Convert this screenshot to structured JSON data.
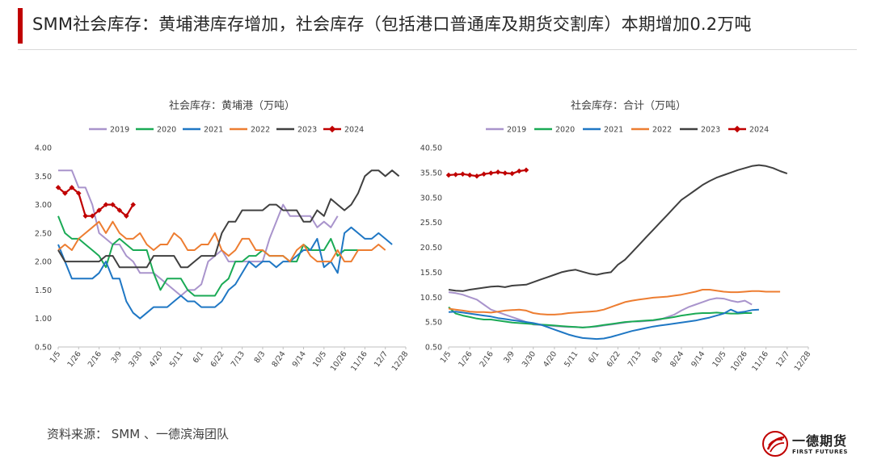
{
  "header": {
    "title": "SMM社会库存：黄埔港库存增加，社会库存（包括港口普通库及期货交割库）本期增加0.2万吨"
  },
  "footer": {
    "source": "资料来源：  SMM 、一德滨海团队"
  },
  "logo": {
    "name_cn": "一德期货",
    "name_en": "FIRST FUTURES"
  },
  "colors": {
    "2019": "#a994cc",
    "2020": "#1aaa55",
    "2021": "#1f77c4",
    "2022": "#ed7d31",
    "2023": "#404040",
    "2024": "#c00000",
    "accent": "#c00000"
  },
  "chart_data": [
    {
      "type": "line",
      "title": "社会库存：黄埔港（万吨）",
      "x_tick_labels": [
        "1/5",
        "1/26",
        "2/16",
        "3/9",
        "3/30",
        "4/20",
        "5/11",
        "6/1",
        "6/22",
        "7/13",
        "8/3",
        "8/24",
        "9/14",
        "10/5",
        "10/26",
        "11/16",
        "12/7",
        "12/28"
      ],
      "ylim": [
        0.5,
        4.0
      ],
      "y_ticks": [
        0.5,
        1.0,
        1.5,
        2.0,
        2.5,
        3.0,
        3.5,
        4.0
      ],
      "y_tick_labels": [
        "0.50",
        "1.00",
        "1.50",
        "2.00",
        "2.50",
        "3.00",
        "3.50",
        "4.00"
      ],
      "grid": false,
      "legend_position": "top",
      "series": [
        {
          "name": "2019",
          "values": [
            3.6,
            3.6,
            3.6,
            3.3,
            3.3,
            3.0,
            2.5,
            2.4,
            2.3,
            2.3,
            2.1,
            2.0,
            1.8,
            1.8,
            1.8,
            1.7,
            1.6,
            1.5,
            1.4,
            1.5,
            1.5,
            1.6,
            2.0,
            2.1,
            2.2,
            2.0,
            2.0,
            2.0,
            2.0,
            2.0,
            2.0,
            2.4,
            2.7,
            3.0,
            2.8,
            2.8,
            2.8,
            2.8,
            2.6,
            2.7,
            2.6,
            2.8
          ]
        },
        {
          "name": "2020",
          "values": [
            2.8,
            2.5,
            2.4,
            2.4,
            2.3,
            2.2,
            2.1,
            1.9,
            2.3,
            2.4,
            2.3,
            2.2,
            2.2,
            2.2,
            1.8,
            1.5,
            1.7,
            1.7,
            1.7,
            1.5,
            1.4,
            1.4,
            1.4,
            1.4,
            1.6,
            1.7,
            2.0,
            2.0,
            2.1,
            2.1,
            2.2,
            2.1,
            2.1,
            2.1,
            2.0,
            2.0,
            2.3,
            2.2,
            2.2,
            2.2,
            2.4,
            2.1,
            2.2,
            2.2,
            2.2
          ]
        },
        {
          "name": "2021",
          "values": [
            2.3,
            2.0,
            1.7,
            1.7,
            1.7,
            1.7,
            1.8,
            2.0,
            1.7,
            1.7,
            1.3,
            1.1,
            1.0,
            1.1,
            1.2,
            1.2,
            1.2,
            1.3,
            1.4,
            1.3,
            1.3,
            1.2,
            1.2,
            1.2,
            1.3,
            1.5,
            1.6,
            1.8,
            2.0,
            1.9,
            2.0,
            2.0,
            1.9,
            2.0,
            2.0,
            2.1,
            2.2,
            2.2,
            2.4,
            1.9,
            2.0,
            1.8,
            2.5,
            2.6,
            2.5,
            2.4,
            2.4,
            2.5,
            2.4,
            2.3
          ]
        },
        {
          "name": "2022",
          "values": [
            2.2,
            2.3,
            2.2,
            2.4,
            2.5,
            2.6,
            2.7,
            2.5,
            2.7,
            2.5,
            2.4,
            2.4,
            2.5,
            2.3,
            2.2,
            2.3,
            2.3,
            2.5,
            2.4,
            2.2,
            2.2,
            2.3,
            2.3,
            2.5,
            2.2,
            2.1,
            2.2,
            2.4,
            2.4,
            2.2,
            2.2,
            2.1,
            2.1,
            2.1,
            2.0,
            2.2,
            2.3,
            2.1,
            2.0,
            2.0,
            2.0,
            2.2,
            2.0,
            2.0,
            2.2,
            2.2,
            2.2,
            2.3,
            2.2
          ]
        },
        {
          "name": "2023",
          "values": [
            2.2,
            2.0,
            2.0,
            2.0,
            2.0,
            2.0,
            2.0,
            2.1,
            2.1,
            1.9,
            1.9,
            1.9,
            1.9,
            1.9,
            2.1,
            2.1,
            2.1,
            2.1,
            1.9,
            1.9,
            2.0,
            2.1,
            2.1,
            2.1,
            2.5,
            2.7,
            2.7,
            2.9,
            2.9,
            2.9,
            2.9,
            3.0,
            3.0,
            2.9,
            2.9,
            2.9,
            2.7,
            2.7,
            2.9,
            2.8,
            3.1,
            3.0,
            2.9,
            3.0,
            3.2,
            3.5,
            3.6,
            3.6,
            3.5,
            3.6,
            3.5
          ]
        },
        {
          "name": "2024",
          "values": [
            3.3,
            3.2,
            3.3,
            3.2,
            2.8,
            2.8,
            2.9,
            3.0,
            3.0,
            2.9,
            2.8,
            3.0
          ]
        }
      ]
    },
    {
      "type": "line",
      "title": "社会库存：合计（万吨）",
      "x_tick_labels": [
        "1/5",
        "1/26",
        "2/16",
        "3/9",
        "3/30",
        "4/20",
        "5/11",
        "6/1",
        "6/22",
        "7/13",
        "8/3",
        "8/24",
        "9/14",
        "10/5",
        "10/26",
        "11/16",
        "12/7",
        "12/28"
      ],
      "ylim": [
        0.5,
        40.5
      ],
      "y_ticks": [
        0.5,
        5.5,
        10.5,
        15.5,
        20.5,
        25.5,
        30.5,
        35.5,
        40.5
      ],
      "y_tick_labels": [
        "0.50",
        "5.50",
        "10.50",
        "15.50",
        "20.50",
        "25.50",
        "30.50",
        "35.50",
        "40.50"
      ],
      "grid": false,
      "legend_position": "top",
      "series": [
        {
          "name": "2019",
          "values": [
            11.5,
            11.3,
            11.0,
            10.5,
            10.0,
            9.0,
            8.0,
            7.5,
            7.0,
            6.5,
            6.0,
            5.5,
            5.0,
            4.9,
            4.8,
            4.7,
            4.6,
            4.5,
            4.5,
            4.4,
            4.5,
            4.6,
            4.8,
            5.0,
            5.2,
            5.4,
            5.6,
            5.6,
            5.7,
            5.8,
            6.0,
            6.5,
            7.0,
            7.8,
            8.5,
            9.0,
            9.5,
            10.0,
            10.3,
            10.2,
            9.8,
            9.5,
            9.8,
            9.0
          ]
        },
        {
          "name": "2020",
          "values": [
            8.5,
            7.2,
            6.8,
            6.5,
            6.2,
            6.0,
            6.0,
            5.8,
            5.6,
            5.4,
            5.3,
            5.2,
            5.1,
            5.0,
            4.9,
            4.8,
            4.7,
            4.6,
            4.5,
            4.4,
            4.5,
            4.7,
            4.9,
            5.1,
            5.3,
            5.5,
            5.6,
            5.7,
            5.8,
            5.9,
            6.1,
            6.3,
            6.5,
            6.8,
            7.0,
            7.2,
            7.3,
            7.3,
            7.4,
            7.3,
            7.2,
            7.2,
            7.3,
            7.3
          ]
        },
        {
          "name": "2021",
          "values": [
            7.5,
            7.6,
            7.4,
            7.2,
            7.0,
            6.8,
            6.6,
            6.3,
            6.1,
            5.9,
            5.7,
            5.5,
            5.3,
            5.0,
            4.5,
            4.0,
            3.5,
            3.0,
            2.6,
            2.3,
            2.2,
            2.1,
            2.2,
            2.5,
            2.9,
            3.3,
            3.7,
            4.0,
            4.3,
            4.6,
            4.8,
            5.0,
            5.2,
            5.4,
            5.6,
            5.8,
            6.1,
            6.4,
            6.8,
            7.2,
            8.0,
            7.4,
            7.6,
            7.9,
            8.0
          ]
        },
        {
          "name": "2022",
          "values": [
            8.2,
            8.0,
            7.8,
            7.6,
            7.5,
            7.5,
            7.4,
            7.6,
            7.8,
            7.9,
            8.0,
            7.8,
            7.3,
            7.1,
            7.0,
            7.0,
            7.1,
            7.3,
            7.4,
            7.5,
            7.6,
            7.7,
            8.0,
            8.5,
            9.0,
            9.5,
            9.8,
            10.0,
            10.2,
            10.4,
            10.5,
            10.6,
            10.8,
            11.0,
            11.3,
            11.6,
            12.0,
            12.0,
            11.8,
            11.6,
            11.5,
            11.5,
            11.6,
            11.7,
            11.7,
            11.6,
            11.6,
            11.6
          ]
        },
        {
          "name": "2023",
          "values": [
            12.0,
            11.8,
            11.7,
            12.0,
            12.2,
            12.4,
            12.6,
            12.7,
            12.5,
            12.8,
            12.9,
            13.0,
            13.5,
            14.0,
            14.5,
            15.0,
            15.5,
            15.8,
            16.0,
            15.6,
            15.2,
            15.0,
            15.3,
            15.5,
            17.0,
            18.0,
            19.5,
            21.0,
            22.5,
            24.0,
            25.5,
            27.0,
            28.5,
            30.0,
            31.0,
            32.0,
            33.0,
            33.8,
            34.5,
            35.0,
            35.5,
            36.0,
            36.4,
            36.8,
            37.0,
            36.8,
            36.4,
            35.8,
            35.3
          ]
        },
        {
          "name": "2024",
          "values": [
            35.0,
            35.1,
            35.2,
            35.0,
            34.8,
            35.2,
            35.4,
            35.6,
            35.4,
            35.3,
            35.8,
            36.0
          ]
        }
      ]
    }
  ]
}
